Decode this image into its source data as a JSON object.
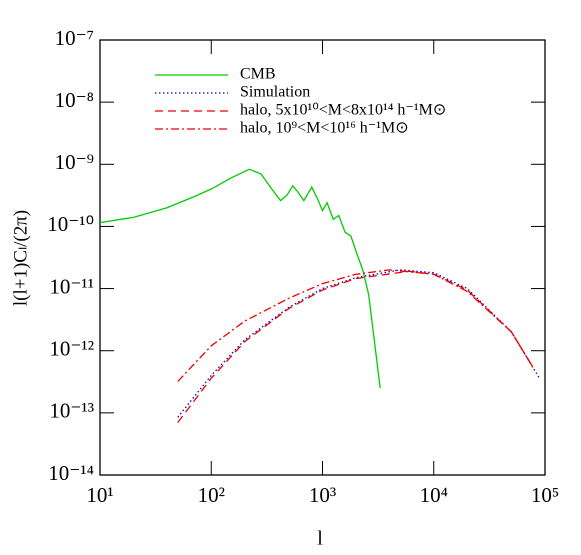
{
  "chart_data": {
    "type": "line",
    "log_x": true,
    "log_y": true,
    "x_label": "l",
    "y_label": "l(l+1)Cₗ/(2π)",
    "xlim": [
      10,
      100000
    ],
    "ylim": [
      1e-14,
      1e-07
    ],
    "xticks": [
      {
        "value": 10,
        "label": "10¹"
      },
      {
        "value": 100,
        "label": "10²"
      },
      {
        "value": 1000,
        "label": "10³"
      },
      {
        "value": 10000,
        "label": "10⁴"
      },
      {
        "value": 100000,
        "label": "10⁵"
      }
    ],
    "yticks": [
      {
        "value": 1e-14,
        "label": "10⁻¹⁴"
      },
      {
        "value": 1e-13,
        "label": "10⁻¹³"
      },
      {
        "value": 1e-12,
        "label": "10⁻¹²"
      },
      {
        "value": 1e-11,
        "label": "10⁻¹¹"
      },
      {
        "value": 1e-10,
        "label": "10⁻¹⁰"
      },
      {
        "value": 1e-09,
        "label": "10⁻⁹"
      },
      {
        "value": 1e-08,
        "label": "10⁻⁸"
      },
      {
        "value": 1e-07,
        "label": "10⁻⁷"
      }
    ],
    "legend": "upper left",
    "series": [
      {
        "name": "CMB",
        "color": "#00cc00",
        "linestyle": "solid",
        "x": [
          10,
          20,
          40,
          70,
          100,
          150,
          220,
          280,
          350,
          420,
          480,
          540,
          600,
          680,
          800,
          900,
          1000,
          1100,
          1250,
          1400,
          1600,
          1800,
          2000,
          2300,
          2600,
          3000,
          3300
        ],
        "values": [
          1.15e-10,
          1.4e-10,
          2e-10,
          3e-10,
          4e-10,
          6e-10,
          8.3e-10,
          7e-10,
          4e-10,
          2.6e-10,
          3.2e-10,
          4.5e-10,
          3.6e-10,
          2.6e-10,
          4.3e-10,
          2.8e-10,
          1.8e-10,
          2.4e-10,
          1.3e-10,
          1.5e-10,
          8e-11,
          7e-11,
          4e-11,
          2e-11,
          8e-12,
          1e-12,
          2.5e-13
        ]
      },
      {
        "name": "Simulation",
        "color": "#0000dd",
        "linestyle": "dotted",
        "x": [
          50,
          100,
          200,
          500,
          1000,
          2000,
          5000,
          10000,
          20000,
          50000,
          90000
        ],
        "values": [
          8.5e-14,
          4e-13,
          1.5e-12,
          5e-12,
          1e-11,
          1.5e-11,
          2e-11,
          1.8e-11,
          1e-11,
          2e-12,
          3.5e-13
        ]
      },
      {
        "name": "halo, 5x10¹⁰<M<8x10¹⁴ h⁻¹M⊙",
        "color": "#ee0000",
        "linestyle": "dashed",
        "x": [
          50,
          100,
          200,
          500,
          1000,
          2000,
          6000,
          10000,
          20000,
          50000,
          80000
        ],
        "values": [
          7e-14,
          3.6e-13,
          1.4e-12,
          4.8e-12,
          9.5e-12,
          1.45e-11,
          1.9e-11,
          1.7e-11,
          9.5e-12,
          2e-12,
          5e-13
        ]
      },
      {
        "name": "halo,  10⁹<M<10¹⁶ h⁻¹M⊙",
        "color": "#ee0000",
        "linestyle": "dashdot",
        "x": [
          50,
          100,
          200,
          500,
          1000,
          2000,
          4000,
          10000,
          20000,
          50000,
          80000
        ],
        "values": [
          3.2e-13,
          1.2e-12,
          3e-12,
          7e-12,
          1.2e-11,
          1.7e-11,
          2e-11,
          1.7e-11,
          9e-12,
          2e-12,
          5e-13
        ]
      }
    ]
  }
}
